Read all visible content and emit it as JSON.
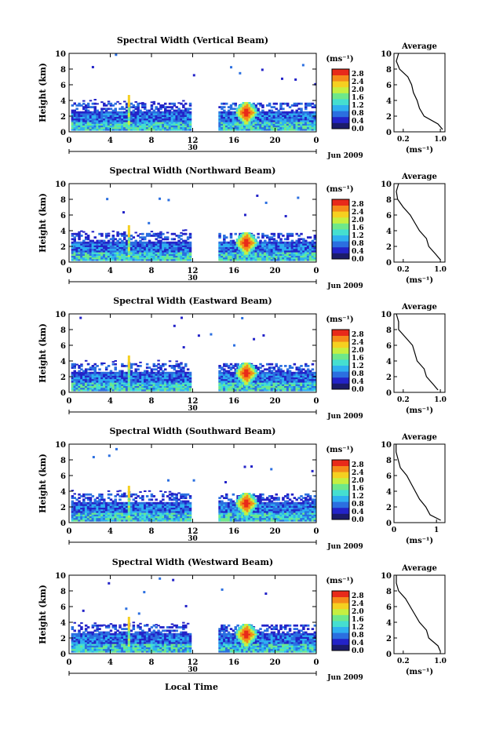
{
  "figure": {
    "xlabel": "Local Time",
    "time_ticks": [
      "0",
      "4",
      "8",
      "12",
      "16",
      "20",
      "0"
    ],
    "day_label": "30",
    "month_label": "Jun 2009",
    "colorbar_unit": "(ms⁻¹)",
    "colorbar_ticks": [
      "0.0",
      "0.4",
      "0.8",
      "1.2",
      "1.6",
      "2.0",
      "2.4",
      "2.8"
    ],
    "colorbar_colors": [
      "#1b1b6b",
      "#2323c8",
      "#2b6fe0",
      "#2fb0f0",
      "#45dfd0",
      "#6ee88a",
      "#c6ef40",
      "#f5d020",
      "#f58a1a",
      "#e82a1a"
    ]
  },
  "chart_data": [
    {
      "type": "heatmap",
      "title": "Spectral Width (Vertical Beam)",
      "ylabel": "Height (km)",
      "xlim": [
        0,
        24
      ],
      "ylim": [
        0,
        10
      ],
      "yticks": [
        "0",
        "2",
        "4",
        "6",
        "8",
        "10"
      ],
      "zlim": [
        0,
        2.8
      ],
      "avg_panel": {
        "title": "Average",
        "xlabel": "(ms⁻¹)",
        "xticks": [
          "0.2",
          "1.0"
        ],
        "xlim": [
          0,
          1.1
        ],
        "heights": [
          0.3,
          1,
          2,
          3,
          4,
          5,
          6,
          7,
          8,
          9,
          10
        ],
        "values": [
          1.05,
          0.95,
          0.65,
          0.55,
          0.5,
          0.42,
          0.38,
          0.3,
          0.12,
          0.05,
          0.1
        ]
      }
    },
    {
      "type": "heatmap",
      "title": "Spectral Width (Northward Beam)",
      "ylabel": "Height (km)",
      "xlim": [
        0,
        24
      ],
      "ylim": [
        0,
        10
      ],
      "yticks": [
        "0",
        "2",
        "4",
        "6",
        "8",
        "10"
      ],
      "zlim": [
        0,
        2.8
      ],
      "avg_panel": {
        "title": "Average",
        "xlabel": "(ms⁻¹)",
        "xticks": [
          "0.2",
          "1.0"
        ],
        "xlim": [
          0,
          1.1
        ],
        "heights": [
          0.3,
          1,
          2,
          3,
          4,
          5,
          6,
          7,
          8,
          9,
          10
        ],
        "values": [
          1.0,
          0.9,
          0.75,
          0.7,
          0.55,
          0.45,
          0.35,
          0.2,
          0.08,
          0.05,
          0.1
        ]
      }
    },
    {
      "type": "heatmap",
      "title": "Spectral Width (Eastward Beam)",
      "ylabel": "Height (km)",
      "xlim": [
        0,
        24
      ],
      "ylim": [
        0,
        10
      ],
      "yticks": [
        "0",
        "2",
        "4",
        "6",
        "8",
        "10"
      ],
      "zlim": [
        0,
        2.8
      ],
      "avg_panel": {
        "title": "Average",
        "xlabel": "(ms⁻¹)",
        "xticks": [
          "0.2",
          "1.0"
        ],
        "xlim": [
          0,
          1.1
        ],
        "heights": [
          0.3,
          1,
          2,
          3,
          4,
          5,
          6,
          7,
          8,
          9,
          10
        ],
        "values": [
          0.95,
          0.85,
          0.7,
          0.65,
          0.5,
          0.45,
          0.4,
          0.25,
          0.1,
          0.1,
          0.05
        ]
      }
    },
    {
      "type": "heatmap",
      "title": "Spectral Width (Southward Beam)",
      "ylabel": "Height (km)",
      "xlim": [
        0,
        24
      ],
      "ylim": [
        0,
        10
      ],
      "yticks": [
        "0",
        "2",
        "4",
        "6",
        "8",
        "10"
      ],
      "zlim": [
        0,
        2.8
      ],
      "avg_panel": {
        "title": "Average",
        "xlabel": "(ms⁻¹)",
        "xticks": [
          "0",
          "1"
        ],
        "xlim": [
          0,
          1.2
        ],
        "heights": [
          0.3,
          1,
          2,
          3,
          4,
          5,
          6,
          7,
          8,
          9,
          10
        ],
        "values": [
          1.1,
          0.85,
          0.75,
          0.6,
          0.5,
          0.4,
          0.3,
          0.15,
          0.1,
          0.05,
          0.05
        ]
      }
    },
    {
      "type": "heatmap",
      "title": "Spectral Width (Westward Beam)",
      "ylabel": "Height (km)",
      "xlim": [
        0,
        24
      ],
      "ylim": [
        0,
        10
      ],
      "yticks": [
        "0",
        "2",
        "4",
        "6",
        "8",
        "10"
      ],
      "zlim": [
        0,
        2.8
      ],
      "avg_panel": {
        "title": "Average",
        "xlabel": "(ms⁻¹)",
        "xticks": [
          "0.2",
          "1.0"
        ],
        "xlim": [
          0,
          1.1
        ],
        "heights": [
          0.3,
          1,
          2,
          3,
          4,
          5,
          6,
          7,
          8,
          9,
          10
        ],
        "values": [
          1.0,
          0.95,
          0.75,
          0.7,
          0.55,
          0.45,
          0.35,
          0.25,
          0.1,
          0.05,
          0.05
        ]
      }
    }
  ]
}
